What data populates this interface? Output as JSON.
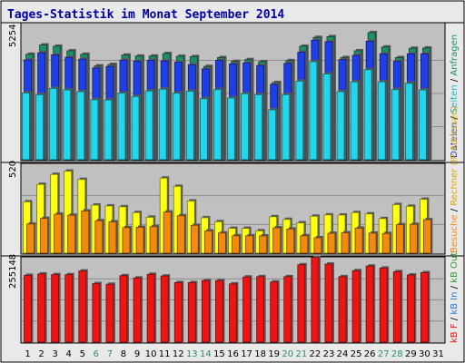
{
  "title": "Tages-Statistik im Monat September 2014",
  "colors": {
    "frame_bg": "#e9e9e9",
    "plot_bg": "#c0c0c0",
    "title": "#0000a0",
    "anfragen": "#1a8f6a",
    "dateien": "#1e3ee8",
    "seiten": "#22d6ee",
    "rechner": "#ffff14",
    "besuche": "#f28a12",
    "kb": "#ee1414",
    "weekend_label": "#2a8f6a",
    "weekday_label": "#000000",
    "ip_label": "#d35400",
    "kb_in_label": "#1c7ed6",
    "kb_out_label": "#2e9e2e"
  },
  "legend": {
    "p1_dateien": "Dateien",
    "p1_sep1": " / ",
    "p1_anfragen": "Anfragen",
    "p1_seiten": "Seiten",
    "p1_sep2": " / ",
    "p2_rechner": "Rechner (IP-Adressen)",
    "p2_sep": " / ",
    "p2_besuche": "Besuche",
    "p3_kbf": "kB F",
    "p3_sep1": " / ",
    "p3_kbin": "kB In",
    "p3_sep2": " / ",
    "p3_kbout": "kB Out"
  },
  "axis_max_labels": {
    "p1": "5254",
    "p2": "520",
    "p3": "255148"
  },
  "chart_data": [
    {
      "type": "bar",
      "panel": "Anfragen / Dateien / Seiten",
      "ylim": [
        0,
        5254
      ],
      "categories": [
        "1",
        "2",
        "3",
        "4",
        "5",
        "6",
        "7",
        "8",
        "9",
        "10",
        "11",
        "12",
        "13",
        "14",
        "15",
        "16",
        "17",
        "18",
        "19",
        "20",
        "21",
        "22",
        "23",
        "24",
        "25",
        "26",
        "27",
        "28",
        "29",
        "30",
        "31"
      ],
      "series": [
        {
          "name": "Anfragen",
          "values": [
            4180,
            4550,
            4500,
            4320,
            4180,
            3720,
            3780,
            4150,
            4110,
            4110,
            4210,
            4100,
            4090,
            3700,
            4050,
            3900,
            3970,
            3890,
            3060,
            3930,
            4500,
            4850,
            4880,
            4050,
            4320,
            5040,
            4470,
            4050,
            4420,
            4430,
            0
          ]
        },
        {
          "name": "Dateien",
          "values": [
            3960,
            4240,
            4160,
            4060,
            3990,
            3640,
            3700,
            3950,
            3910,
            3940,
            3920,
            3870,
            3770,
            3600,
            3940,
            3800,
            3840,
            3740,
            2990,
            3820,
            4260,
            4740,
            4680,
            3970,
            4140,
            4700,
            4200,
            3900,
            4200,
            4200,
            0
          ]
        },
        {
          "name": "Seiten",
          "values": [
            2650,
            2580,
            2830,
            2770,
            2700,
            2380,
            2370,
            2640,
            2510,
            2730,
            2800,
            2640,
            2720,
            2420,
            2780,
            2450,
            2620,
            2580,
            1980,
            2580,
            3120,
            3890,
            3400,
            2700,
            3090,
            3570,
            3090,
            2780,
            3030,
            2770,
            0
          ]
        }
      ],
      "grid": true,
      "legend": "right-vertical"
    },
    {
      "type": "bar",
      "panel": "Besuche / Rechner (IP-Adressen)",
      "ylim": [
        0,
        520
      ],
      "categories": [
        "1",
        "2",
        "3",
        "4",
        "5",
        "6",
        "7",
        "8",
        "9",
        "10",
        "11",
        "12",
        "13",
        "14",
        "15",
        "16",
        "17",
        "18",
        "19",
        "20",
        "21",
        "22",
        "23",
        "24",
        "25",
        "26",
        "27",
        "28",
        "29",
        "30",
        "31"
      ],
      "series": [
        {
          "name": "Rechner (IP-Adressen)",
          "values": [
            310,
            415,
            475,
            495,
            445,
            290,
            285,
            280,
            245,
            217,
            453,
            403,
            315,
            214,
            190,
            150,
            150,
            135,
            220,
            204,
            183,
            223,
            231,
            230,
            245,
            237,
            209,
            293,
            283,
            325,
            0
          ]
        },
        {
          "name": "Besuche",
          "values": [
            176,
            210,
            235,
            229,
            255,
            196,
            189,
            154,
            156,
            160,
            248,
            226,
            168,
            134,
            122,
            105,
            105,
            104,
            153,
            146,
            105,
            93,
            120,
            123,
            151,
            121,
            119,
            172,
            174,
            202,
            0
          ]
        }
      ],
      "grid": true,
      "legend": "right-vertical"
    },
    {
      "type": "bar",
      "panel": "kB F / kB In / kB Out",
      "ylim": [
        0,
        255148
      ],
      "categories": [
        "1",
        "2",
        "3",
        "4",
        "5",
        "6",
        "7",
        "8",
        "9",
        "10",
        "11",
        "12",
        "13",
        "14",
        "15",
        "16",
        "17",
        "18",
        "19",
        "20",
        "21",
        "22",
        "23",
        "24",
        "25",
        "26",
        "27",
        "28",
        "29",
        "30",
        "31"
      ],
      "series": [
        {
          "name": "kB F",
          "values": [
            202000,
            206000,
            204000,
            204000,
            215000,
            177000,
            175000,
            201000,
            194000,
            205000,
            200000,
            180000,
            180000,
            186000,
            186000,
            176000,
            197000,
            198000,
            182000,
            198000,
            234000,
            256000,
            236000,
            198000,
            216000,
            230000,
            224000,
            213000,
            203000,
            210000,
            0
          ]
        }
      ],
      "grid": true,
      "legend": "right-vertical"
    }
  ]
}
